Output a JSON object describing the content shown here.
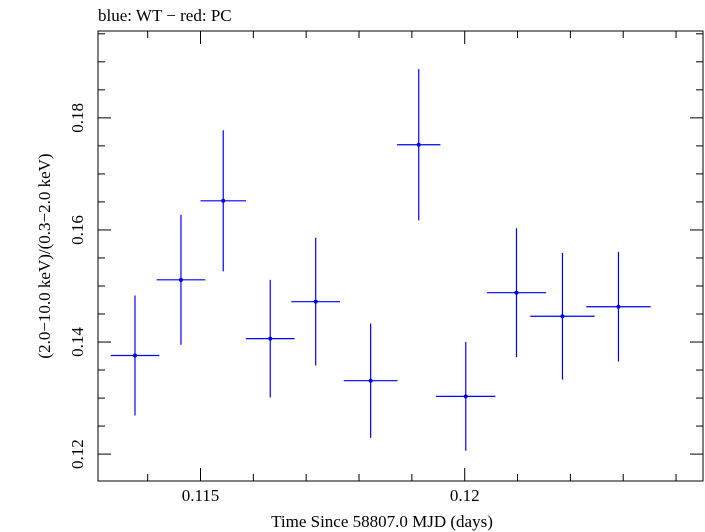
{
  "chart_data": {
    "type": "scatter",
    "title": "blue: WT − red: PC",
    "xlabel": "Time Since 58807.0 MJD (days)",
    "ylabel": "(2.0−10.0 keV)/(0.3−2.0 keV)",
    "xlim": [
      0.11306,
      0.12451
    ],
    "ylim": [
      0.1152,
      0.1955
    ],
    "x_ticks": [
      0.115,
      0.12
    ],
    "x_tick_labels": [
      "0.115",
      "0.12"
    ],
    "y_ticks": [
      0.12,
      0.14,
      0.16,
      0.18
    ],
    "y_tick_labels": [
      "0.12",
      "0.14",
      "0.16",
      "0.18"
    ],
    "grid": false,
    "series": [
      {
        "color": "#0000ff",
        "points": [
          {
            "x": 0.11376,
            "y": 0.1376,
            "xerr": 0.00046,
            "yerr": 0.0107
          },
          {
            "x": 0.11463,
            "y": 0.1511,
            "xerr": 0.00046,
            "yerr": 0.0116
          },
          {
            "x": 0.11543,
            "y": 0.1652,
            "xerr": 0.00043,
            "yerr": 0.0126
          },
          {
            "x": 0.11632,
            "y": 0.1406,
            "xerr": 0.00046,
            "yerr": 0.0105
          },
          {
            "x": 0.11718,
            "y": 0.1472,
            "xerr": 0.00046,
            "yerr": 0.0114
          },
          {
            "x": 0.11822,
            "y": 0.1331,
            "xerr": 0.00051,
            "yerr": 0.0102
          },
          {
            "x": 0.11913,
            "y": 0.1752,
            "xerr": 0.00041,
            "yerr": 0.0135
          },
          {
            "x": 0.12002,
            "y": 0.1303,
            "xerr": 0.00056,
            "yerr": 0.0097
          },
          {
            "x": 0.12098,
            "y": 0.1488,
            "xerr": 0.00056,
            "yerr": 0.0115
          },
          {
            "x": 0.12185,
            "y": 0.1446,
            "xerr": 0.00061,
            "yerr": 0.0113
          },
          {
            "x": 0.12291,
            "y": 0.1463,
            "xerr": 0.00061,
            "yerr": 0.0098
          }
        ]
      }
    ]
  }
}
